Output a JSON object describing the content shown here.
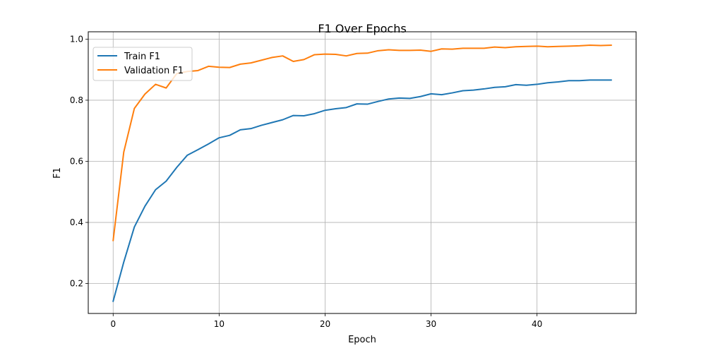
{
  "chart_data": {
    "type": "line",
    "title": "F1 Over Epochs",
    "xlabel": "Epoch",
    "ylabel": "F1",
    "xlim": [
      -2.35,
      49.35
    ],
    "ylim": [
      0.102,
      1.024
    ],
    "xticks": [
      0,
      10,
      20,
      30,
      40
    ],
    "yticks": [
      0.2,
      0.4,
      0.6,
      0.8,
      1.0
    ],
    "xtick_labels": [
      "0",
      "10",
      "20",
      "30",
      "40"
    ],
    "ytick_labels": [
      "0.2",
      "0.4",
      "0.6",
      "0.8",
      "1.0"
    ],
    "grid": true,
    "legend_position": "top-left",
    "x": [
      0,
      1,
      2,
      3,
      4,
      5,
      6,
      7,
      8,
      9,
      10,
      11,
      12,
      13,
      14,
      15,
      16,
      17,
      18,
      19,
      20,
      21,
      22,
      23,
      24,
      25,
      26,
      27,
      28,
      29,
      30,
      31,
      32,
      33,
      34,
      35,
      36,
      37,
      38,
      39,
      40,
      41,
      42,
      43,
      44,
      45,
      46,
      47
    ],
    "series": [
      {
        "name": "Train F1",
        "color": "#1f77b4",
        "values": [
          0.142,
          0.27,
          0.385,
          0.453,
          0.507,
          0.535,
          0.58,
          0.62,
          0.638,
          0.657,
          0.677,
          0.685,
          0.703,
          0.707,
          0.718,
          0.727,
          0.736,
          0.75,
          0.749,
          0.756,
          0.767,
          0.772,
          0.776,
          0.788,
          0.787,
          0.796,
          0.804,
          0.807,
          0.806,
          0.812,
          0.821,
          0.818,
          0.824,
          0.831,
          0.833,
          0.837,
          0.842,
          0.844,
          0.851,
          0.849,
          0.852,
          0.857,
          0.86,
          0.864,
          0.864,
          0.866,
          0.866,
          0.866
        ]
      },
      {
        "name": "Validation F1",
        "color": "#ff7f0e",
        "values": [
          0.341,
          0.63,
          0.773,
          0.82,
          0.852,
          0.84,
          0.887,
          0.894,
          0.897,
          0.911,
          0.908,
          0.907,
          0.918,
          0.922,
          0.931,
          0.94,
          0.945,
          0.927,
          0.933,
          0.949,
          0.951,
          0.95,
          0.945,
          0.953,
          0.954,
          0.962,
          0.965,
          0.963,
          0.963,
          0.964,
          0.96,
          0.968,
          0.967,
          0.97,
          0.97,
          0.97,
          0.974,
          0.972,
          0.975,
          0.976,
          0.977,
          0.975,
          0.976,
          0.977,
          0.978,
          0.98,
          0.979,
          0.98
        ]
      }
    ]
  }
}
